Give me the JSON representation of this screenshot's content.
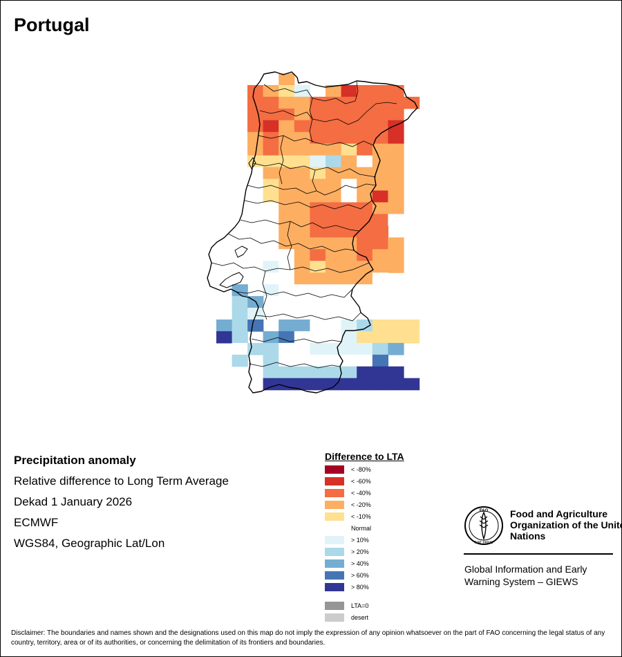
{
  "title": "Portugal",
  "info": {
    "line1": "Precipitation anomaly",
    "line2": "Relative difference to Long Term Average",
    "line3": "Dekad 1 January 2026",
    "line4": "ECMWF",
    "line5": "WGS84, Geographic Lat/Lon"
  },
  "legend": {
    "title": "Difference to LTA",
    "items": [
      {
        "label": "< -80%",
        "color": "#a50026"
      },
      {
        "label": "< -60%",
        "color": "#d73027"
      },
      {
        "label": "< -40%",
        "color": "#f46d43"
      },
      {
        "label": "< -20%",
        "color": "#fdae61"
      },
      {
        "label": "< -10%",
        "color": "#fee090"
      },
      {
        "label": "Normal",
        "color": "#ffffff"
      },
      {
        "label": "> 10%",
        "color": "#e0f3f8"
      },
      {
        "label": "> 20%",
        "color": "#abd9e9"
      },
      {
        "label": "> 40%",
        "color": "#74add1"
      },
      {
        "label": "> 60%",
        "color": "#4575b4"
      },
      {
        "label": "> 80%",
        "color": "#313695"
      },
      {
        "label": "LTA=0",
        "color": "#969696"
      },
      {
        "label": "desert",
        "color": "#cccccc"
      }
    ]
  },
  "fao": {
    "logo_text": "FAO",
    "logo_motto": "FIAT PANIS",
    "name": "Food and Agriculture Organization of the United Nations",
    "giews": "Global Information and Early Warning System – GIEWS"
  },
  "disclaimer": "Disclaimer: The boundaries and names shown and the designations used on this map do not imply the expression of any opinion whatsoever on the part of FAO concerning the legal status of any country, territory, area or of its authorities, or concerning the delimitation of its frontiers and boundaries.",
  "map_grid": {
    "legend_classes": [
      "< -80%",
      "< -60%",
      "< -40%",
      "< -20%",
      "< -10%",
      "Normal",
      "> 10%",
      "> 20%",
      "> 40%",
      "> 60%",
      "> 80%"
    ],
    "col0": 14,
    "cols": 12,
    "rows": [
      ". . 3 . . . . . . . . .",
      "2 3 4 6 . 3 1 2 2 2 . .",
      "2 2 3 3 2 2 2 2 2 2 2 .",
      "2 2 2 3 2 2 2 2 2 2 . .",
      "2 1 3 2 2 2 2 2 2 1 . .",
      "3 2 3 3 2 2 2 2 2 1 . .",
      "3 2 3 3 3 3 4 2 3 3 . .",
      "4 4 4 4 6 7 3 5 3 3 . .",
      "5 3 3 3 4 3 3 3 3 3 . .",
      ". 4 3 3 3 3 5 3 3 3 . .",
      ". 4 3 3 3 3 5 3 1 3 . .",
      ". 5 3 3 2 2 2 2 3 3 . .",
      ". 5 3 3 2 2 2 2 2 5 . .",
      ". 5 3 3 2 2 2 2 2 . . .",
      ". 5 3 3 3 3 3 2 2 3 . .",
      ". 5 5 3 2 3 3 2 3 3 . .",
      ". 6 5 3 4 3 3 3 3 3 . .",
      ". 5 5 3 3 3 3 3 5 . . .",
      ". 6 5 5 5 5 5 5 5 5 . .",
      ". 5 5 5 5 5 5 5 5 . . .",
      ". 5 5 5 5 5 5 5 5 5 . .",
      ". 5 8 8 5 5 6 7 4 4 4 .",
      ". 8 9 5 5 5 6 4 4 4 4 .",
      ". 7 5 5 6 6 6 6 7 8 . .",
      ". 7 5 5 5 5 5 5 9 . . .",
      ". 7 7 7 7 7 7 10 10 10 . .",
      ". 10 10 10 10 10 10 10 10 10 10 ."
    ],
    "rows_left": [
      "5 5 5 . .",
      "5 8 . . .",
      "5 7 8 . .",
      "5 7 6 . .",
      "8 7 9 . .",
      "10 7 . . .",
      ". 5 7 . .",
      ". 7 . . ."
    ]
  }
}
